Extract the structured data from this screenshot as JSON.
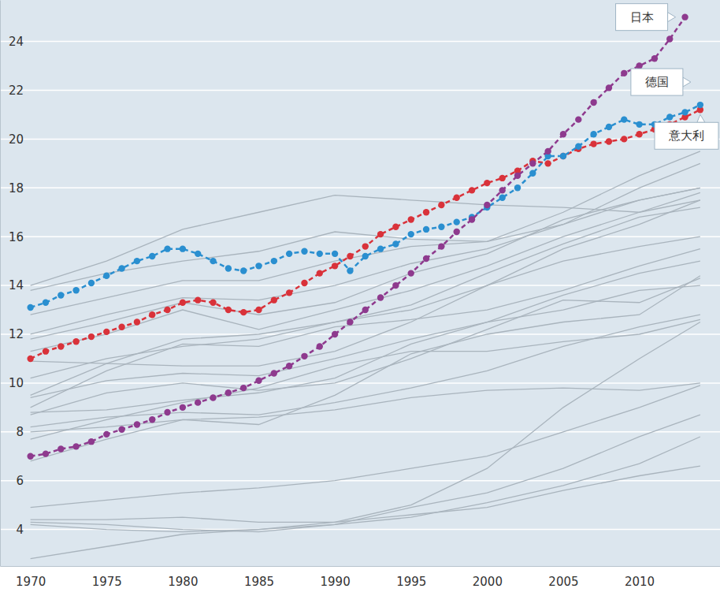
{
  "chart_data": {
    "type": "line",
    "x": [
      1970,
      1971,
      1972,
      1973,
      1974,
      1975,
      1976,
      1977,
      1978,
      1979,
      1980,
      1981,
      1982,
      1983,
      1984,
      1985,
      1986,
      1987,
      1988,
      1989,
      1990,
      1991,
      1992,
      1993,
      1994,
      1995,
      1996,
      1997,
      1998,
      1999,
      2000,
      2001,
      2002,
      2003,
      2004,
      2005,
      2006,
      2007,
      2008,
      2009,
      2010,
      2011,
      2012,
      2013,
      2014
    ],
    "xlim": [
      1968,
      2015.3
    ],
    "xticks": [
      1970,
      1975,
      1980,
      1985,
      1990,
      1995,
      2000,
      2005,
      2010
    ],
    "ylim": [
      2.5,
      25.7
    ],
    "yticks": [
      4,
      6,
      8,
      10,
      12,
      14,
      16,
      18,
      20,
      22,
      24
    ],
    "grid": true,
    "series": [
      {
        "x": [
          1970,
          1975,
          1980,
          1985,
          1990,
          1995,
          2000,
          2005,
          2010,
          2014
        ],
        "color": "#a9b4bd",
        "line_style": "solid",
        "values": [
          14.0,
          15.0,
          16.3,
          17.0,
          17.7,
          17.5,
          17.3,
          17.2,
          17.0,
          17.5
        ]
      },
      {
        "x": [
          1970,
          1975,
          1980,
          1985,
          1990,
          1995,
          2000,
          2005,
          2010,
          2014
        ],
        "color": "#a9b4bd",
        "line_style": "solid",
        "values": [
          13.8,
          14.5,
          15.0,
          15.4,
          16.2,
          15.9,
          15.8,
          16.5,
          17.5,
          18.0
        ]
      },
      {
        "x": [
          1970,
          1975,
          1980,
          1985,
          1990,
          1995,
          2000,
          2005,
          2010,
          2014
        ],
        "color": "#a9b4bd",
        "line_style": "solid",
        "values": [
          12.8,
          13.5,
          14.2,
          14.2,
          15.0,
          15.6,
          15.8,
          17.0,
          18.5,
          19.5
        ]
      },
      {
        "x": [
          1970,
          1975,
          1980,
          1985,
          1990,
          1995,
          2000,
          2005,
          2010,
          2014
        ],
        "color": "#a9b4bd",
        "line_style": "solid",
        "values": [
          12.0,
          12.8,
          13.5,
          13.4,
          14.0,
          14.9,
          15.5,
          16.5,
          18.0,
          19.0
        ]
      },
      {
        "x": [
          1970,
          1975,
          1980,
          1985,
          1990,
          1995,
          2000,
          2005,
          2010,
          2014
        ],
        "color": "#a9b4bd",
        "line_style": "solid",
        "values": [
          11.8,
          12.5,
          13.3,
          12.8,
          13.3,
          14.5,
          15.3,
          16.7,
          17.5,
          18.0
        ]
      },
      {
        "x": [
          1970,
          1975,
          1980,
          1985,
          1990,
          1995,
          2000,
          2005,
          2010,
          2014
        ],
        "color": "#a9b4bd",
        "line_style": "solid",
        "values": [
          11.3,
          12.0,
          13.0,
          12.2,
          13.0,
          13.8,
          14.8,
          16.0,
          17.0,
          17.8
        ]
      },
      {
        "x": [
          1970,
          1975,
          1980,
          1985,
          1990,
          1995,
          2000,
          2005,
          2010,
          2014
        ],
        "color": "#a9b4bd",
        "line_style": "solid",
        "values": [
          10.9,
          10.8,
          10.7,
          10.7,
          11.3,
          12.5,
          14.0,
          15.5,
          16.5,
          17.5
        ]
      },
      {
        "x": [
          1970,
          1975,
          1980,
          1985,
          1990,
          1995,
          2000,
          2005,
          2010,
          2014
        ],
        "color": "#a9b4bd",
        "line_style": "solid",
        "values": [
          10.2,
          11.0,
          11.5,
          11.8,
          12.5,
          13.2,
          14.5,
          15.7,
          16.8,
          17.2
        ]
      },
      {
        "x": [
          1970,
          1975,
          1980,
          1985,
          1990,
          1995,
          2000,
          2005,
          2010,
          2014
        ],
        "color": "#a9b4bd",
        "line_style": "solid",
        "values": [
          9.5,
          10.8,
          11.8,
          12.0,
          12.5,
          13.0,
          14.0,
          15.0,
          15.6,
          16.0
        ]
      },
      {
        "x": [
          1970,
          1975,
          1980,
          1985,
          1990,
          1995,
          2000,
          2005,
          2010,
          2014
        ],
        "color": "#a9b4bd",
        "line_style": "solid",
        "values": [
          9.0,
          10.5,
          11.6,
          11.5,
          12.3,
          12.6,
          13.0,
          13.8,
          14.8,
          15.5
        ]
      },
      {
        "x": [
          1970,
          1975,
          1980,
          1985,
          1990,
          1995,
          2000,
          2005,
          2010,
          2014
        ],
        "color": "#a9b4bd",
        "line_style": "solid",
        "values": [
          9.4,
          10.1,
          10.4,
          10.3,
          11.0,
          11.8,
          12.5,
          13.6,
          14.5,
          15.0
        ]
      },
      {
        "x": [
          1970,
          1975,
          1980,
          1985,
          1990,
          1995,
          2000,
          2005,
          2010,
          2014
        ],
        "color": "#a9b4bd",
        "line_style": "solid",
        "values": [
          8.7,
          9.6,
          10.0,
          9.7,
          10.0,
          11.0,
          12.2,
          13.4,
          13.3,
          14.3
        ]
      },
      {
        "x": [
          1970,
          1975,
          1980,
          1985,
          1990,
          1995,
          2000,
          2005,
          2010,
          2014
        ],
        "color": "#a9b4bd",
        "line_style": "solid",
        "values": [
          8.2,
          8.6,
          8.8,
          8.7,
          9.2,
          9.8,
          10.5,
          11.5,
          12.3,
          12.8
        ]
      },
      {
        "x": [
          1970,
          1975,
          1980,
          1985,
          1990,
          1995,
          2000,
          2005,
          2010,
          2014
        ],
        "color": "#a9b4bd",
        "line_style": "solid",
        "values": [
          8.0,
          8.2,
          8.5,
          8.3,
          9.5,
          11.2,
          12.0,
          12.5,
          12.8,
          14.4
        ]
      },
      {
        "x": [
          1970,
          1975,
          1980,
          1985,
          1990,
          1995,
          2000,
          2005,
          2010,
          2014
        ],
        "color": "#a9b4bd",
        "line_style": "solid",
        "values": [
          8.8,
          8.9,
          9.3,
          9.6,
          10.2,
          11.6,
          12.5,
          13.0,
          13.8,
          14.0
        ]
      },
      {
        "x": [
          1970,
          1975,
          1980,
          1985,
          1990,
          1995,
          2000,
          2005,
          2010,
          2014
        ],
        "color": "#a9b4bd",
        "line_style": "solid",
        "values": [
          7.7,
          8.5,
          9.2,
          9.8,
          10.7,
          11.3,
          11.3,
          11.7,
          12.0,
          12.6
        ]
      },
      {
        "x": [
          1970,
          1975,
          1980,
          1985,
          1990,
          1995,
          2000,
          2005,
          2010,
          2014
        ],
        "color": "#a9b4bd",
        "line_style": "solid",
        "values": [
          6.8,
          7.7,
          8.5,
          8.6,
          8.9,
          9.4,
          9.7,
          9.8,
          9.7,
          10.0
        ]
      },
      {
        "x": [
          1970,
          1975,
          1980,
          1985,
          1990,
          1995,
          2000,
          2005,
          2010,
          2014
        ],
        "color": "#a9b4bd",
        "line_style": "solid",
        "values": [
          4.9,
          5.2,
          5.5,
          5.7,
          6.0,
          6.5,
          7.0,
          8.0,
          9.0,
          9.9
        ]
      },
      {
        "x": [
          1970,
          1975,
          1980,
          1985,
          1990,
          1995,
          2000,
          2005,
          2010,
          2014
        ],
        "color": "#a9b4bd",
        "line_style": "solid",
        "values": [
          4.4,
          4.4,
          4.5,
          4.3,
          4.3,
          5.0,
          6.5,
          9.0,
          11.0,
          12.5
        ]
      },
      {
        "x": [
          1970,
          1975,
          1980,
          1985,
          1990,
          1995,
          2000,
          2005,
          2010,
          2014
        ],
        "color": "#a9b4bd",
        "line_style": "solid",
        "values": [
          2.8,
          3.3,
          3.8,
          4.0,
          4.2,
          4.9,
          5.5,
          6.5,
          7.8,
          8.7
        ]
      },
      {
        "x": [
          1970,
          1975,
          1980,
          1985,
          1990,
          1995,
          2000,
          2005,
          2010,
          2014
        ],
        "color": "#a9b4bd",
        "line_style": "solid",
        "values": [
          4.3,
          4.2,
          4.0,
          3.9,
          4.2,
          4.5,
          5.1,
          5.8,
          6.7,
          7.8
        ]
      },
      {
        "x": [
          1970,
          1975,
          1980,
          1985,
          1990,
          1995,
          2000,
          2005,
          2010,
          2014
        ],
        "color": "#a9b4bd",
        "line_style": "solid",
        "values": [
          4.2,
          4.0,
          3.9,
          4.0,
          4.3,
          4.6,
          4.9,
          5.6,
          6.2,
          6.6
        ]
      },
      {
        "name": "意大利",
        "color": "#d9323a",
        "marker": "circle",
        "line_style": "dashed",
        "values": [
          11.0,
          11.3,
          11.5,
          11.7,
          11.9,
          12.1,
          12.3,
          12.5,
          12.8,
          13.0,
          13.3,
          13.4,
          13.3,
          13.0,
          12.9,
          13.0,
          13.4,
          13.7,
          14.1,
          14.5,
          14.8,
          15.2,
          15.6,
          16.1,
          16.4,
          16.7,
          17.0,
          17.3,
          17.6,
          17.9,
          18.2,
          18.4,
          18.7,
          19.1,
          19.0,
          19.3,
          19.6,
          19.8,
          19.9,
          20.0,
          20.2,
          20.4,
          20.6,
          20.9,
          21.2
        ]
      },
      {
        "name": "德国",
        "color": "#2a8fd0",
        "marker": "circle",
        "line_style": "dashed",
        "values": [
          13.1,
          13.3,
          13.6,
          13.8,
          14.1,
          14.4,
          14.7,
          15.0,
          15.2,
          15.5,
          15.5,
          15.3,
          15.0,
          14.7,
          14.6,
          14.8,
          15.0,
          15.3,
          15.4,
          15.3,
          15.3,
          14.6,
          15.2,
          15.5,
          15.7,
          16.1,
          16.3,
          16.4,
          16.6,
          16.8,
          17.2,
          17.6,
          18.0,
          18.6,
          19.3,
          19.3,
          19.7,
          20.2,
          20.5,
          20.8,
          20.6,
          20.6,
          20.9,
          21.1,
          21.4
        ]
      },
      {
        "name": "日本",
        "color": "#8e3a8e",
        "marker": "circle",
        "line_style": "dashed",
        "values": [
          7.0,
          7.1,
          7.3,
          7.4,
          7.6,
          7.9,
          8.1,
          8.3,
          8.5,
          8.8,
          9.0,
          9.2,
          9.4,
          9.6,
          9.8,
          10.1,
          10.4,
          10.7,
          11.1,
          11.5,
          12.0,
          12.5,
          13.0,
          13.5,
          14.0,
          14.5,
          15.1,
          15.6,
          16.2,
          16.7,
          17.3,
          17.9,
          18.5,
          19.0,
          19.5,
          20.2,
          20.8,
          21.5,
          22.1,
          22.7,
          23.0,
          23.3,
          24.1,
          25.0,
          null
        ]
      }
    ]
  }
}
